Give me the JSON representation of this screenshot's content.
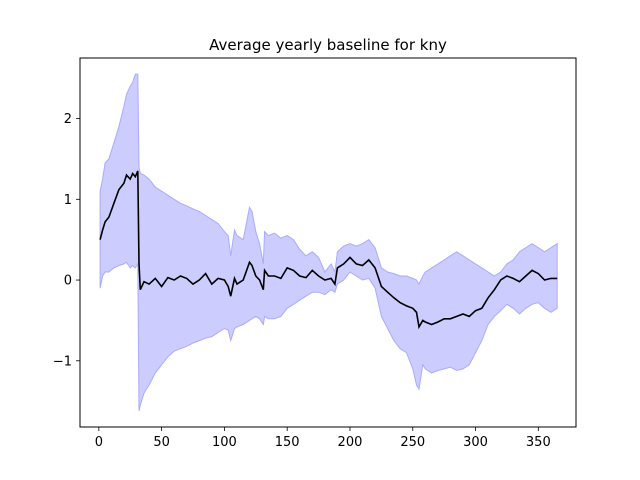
{
  "chart_data": {
    "type": "line",
    "title": "Average yearly baseline for kny",
    "xlabel": "",
    "ylabel": "",
    "xlim": [
      -15,
      380
    ],
    "ylim": [
      -1.82,
      2.75
    ],
    "xticks": [
      0,
      50,
      100,
      150,
      200,
      250,
      300,
      350
    ],
    "yticks": [
      -1,
      0,
      1,
      2
    ],
    "grid": false,
    "legend": "none",
    "colors": {
      "line": "#000000",
      "band_fill": "#ccccff",
      "band_edge": "#aaaaff"
    },
    "series": [
      {
        "type": "line",
        "x": [
          1,
          3,
          5,
          8,
          12,
          16,
          20,
          22,
          25,
          27,
          29,
          31,
          32,
          33,
          36,
          40,
          45,
          50,
          55,
          60,
          65,
          70,
          75,
          80,
          85,
          90,
          95,
          100,
          103,
          105,
          108,
          110,
          115,
          120,
          122,
          125,
          128,
          131,
          132,
          135,
          140,
          145,
          150,
          155,
          160,
          165,
          170,
          175,
          180,
          185,
          188,
          190,
          195,
          200,
          205,
          210,
          215,
          220,
          225,
          230,
          235,
          240,
          245,
          250,
          253,
          255,
          258,
          260,
          265,
          270,
          275,
          280,
          285,
          290,
          295,
          300,
          305,
          310,
          315,
          320,
          325,
          330,
          335,
          340,
          345,
          350,
          355,
          360,
          365
        ],
        "y": [
          0.5,
          0.62,
          0.72,
          0.78,
          0.95,
          1.12,
          1.2,
          1.3,
          1.25,
          1.32,
          1.28,
          1.35,
          0.2,
          -0.12,
          -0.02,
          -0.05,
          0.02,
          -0.08,
          0.03,
          0.0,
          0.05,
          0.02,
          -0.05,
          0.0,
          0.08,
          -0.05,
          0.02,
          0.0,
          -0.08,
          -0.2,
          0.02,
          -0.05,
          0.0,
          0.22,
          0.18,
          0.05,
          0.0,
          -0.12,
          0.12,
          0.05,
          0.05,
          0.02,
          0.15,
          0.12,
          0.05,
          0.03,
          0.12,
          0.05,
          0.0,
          0.02,
          -0.05,
          0.15,
          0.2,
          0.28,
          0.2,
          0.18,
          0.25,
          0.15,
          -0.08,
          -0.15,
          -0.22,
          -0.28,
          -0.32,
          -0.35,
          -0.4,
          -0.58,
          -0.5,
          -0.52,
          -0.55,
          -0.52,
          -0.48,
          -0.48,
          -0.45,
          -0.42,
          -0.45,
          -0.38,
          -0.35,
          -0.22,
          -0.12,
          0.0,
          0.05,
          0.02,
          -0.02,
          0.05,
          0.12,
          0.08,
          0.0,
          0.02,
          0.02
        ]
      },
      {
        "type": "band",
        "x": [
          1,
          3,
          5,
          8,
          12,
          16,
          20,
          22,
          25,
          27,
          29,
          31,
          32,
          33,
          36,
          40,
          45,
          50,
          55,
          60,
          65,
          70,
          75,
          80,
          85,
          90,
          95,
          100,
          103,
          105,
          108,
          110,
          115,
          120,
          122,
          125,
          128,
          131,
          132,
          135,
          140,
          145,
          150,
          155,
          160,
          165,
          170,
          175,
          180,
          185,
          188,
          190,
          195,
          200,
          205,
          210,
          215,
          220,
          225,
          230,
          235,
          240,
          245,
          250,
          253,
          255,
          258,
          260,
          265,
          270,
          275,
          280,
          285,
          290,
          295,
          300,
          305,
          310,
          315,
          320,
          325,
          330,
          335,
          340,
          345,
          350,
          355,
          360,
          365
        ],
        "upper": [
          1.1,
          1.25,
          1.45,
          1.5,
          1.7,
          1.9,
          2.15,
          2.3,
          2.4,
          2.45,
          2.55,
          2.55,
          1.4,
          1.32,
          1.3,
          1.25,
          1.15,
          1.1,
          1.05,
          1.0,
          0.95,
          0.92,
          0.88,
          0.85,
          0.8,
          0.75,
          0.7,
          0.6,
          0.55,
          0.3,
          0.62,
          0.55,
          0.5,
          0.9,
          0.85,
          0.6,
          0.45,
          0.2,
          0.6,
          0.55,
          0.58,
          0.52,
          0.55,
          0.5,
          0.38,
          0.3,
          0.35,
          0.28,
          0.1,
          0.2,
          0.1,
          0.35,
          0.42,
          0.45,
          0.42,
          0.45,
          0.5,
          0.4,
          0.15,
          0.1,
          0.08,
          0.05,
          0.05,
          0.02,
          0.0,
          -0.05,
          0.05,
          0.1,
          0.15,
          0.2,
          0.25,
          0.3,
          0.35,
          0.3,
          0.25,
          0.2,
          0.15,
          0.1,
          0.05,
          0.1,
          0.2,
          0.25,
          0.35,
          0.4,
          0.45,
          0.4,
          0.35,
          0.4,
          0.45
        ]
      },
      {
        "type": "band_lower",
        "lower": [
          -0.1,
          0.05,
          0.1,
          0.1,
          0.15,
          0.18,
          0.2,
          0.22,
          0.15,
          0.18,
          0.15,
          0.2,
          -1.62,
          -1.55,
          -1.4,
          -1.3,
          -1.15,
          -1.05,
          -0.95,
          -0.88,
          -0.85,
          -0.82,
          -0.78,
          -0.75,
          -0.72,
          -0.7,
          -0.65,
          -0.6,
          -0.62,
          -0.75,
          -0.6,
          -0.58,
          -0.55,
          -0.5,
          -0.48,
          -0.45,
          -0.48,
          -0.55,
          -0.45,
          -0.48,
          -0.48,
          -0.45,
          -0.35,
          -0.3,
          -0.25,
          -0.2,
          -0.15,
          -0.15,
          -0.18,
          -0.12,
          -0.15,
          -0.05,
          0.0,
          0.1,
          0.05,
          0.0,
          0.02,
          -0.1,
          -0.45,
          -0.6,
          -0.75,
          -0.85,
          -0.9,
          -1.1,
          -1.3,
          -1.35,
          -1.05,
          -1.1,
          -1.15,
          -1.12,
          -1.1,
          -1.08,
          -1.12,
          -1.1,
          -1.05,
          -0.9,
          -0.75,
          -0.55,
          -0.45,
          -0.38,
          -0.3,
          -0.35,
          -0.42,
          -0.35,
          -0.3,
          -0.28,
          -0.35,
          -0.4,
          -0.35
        ]
      }
    ]
  }
}
